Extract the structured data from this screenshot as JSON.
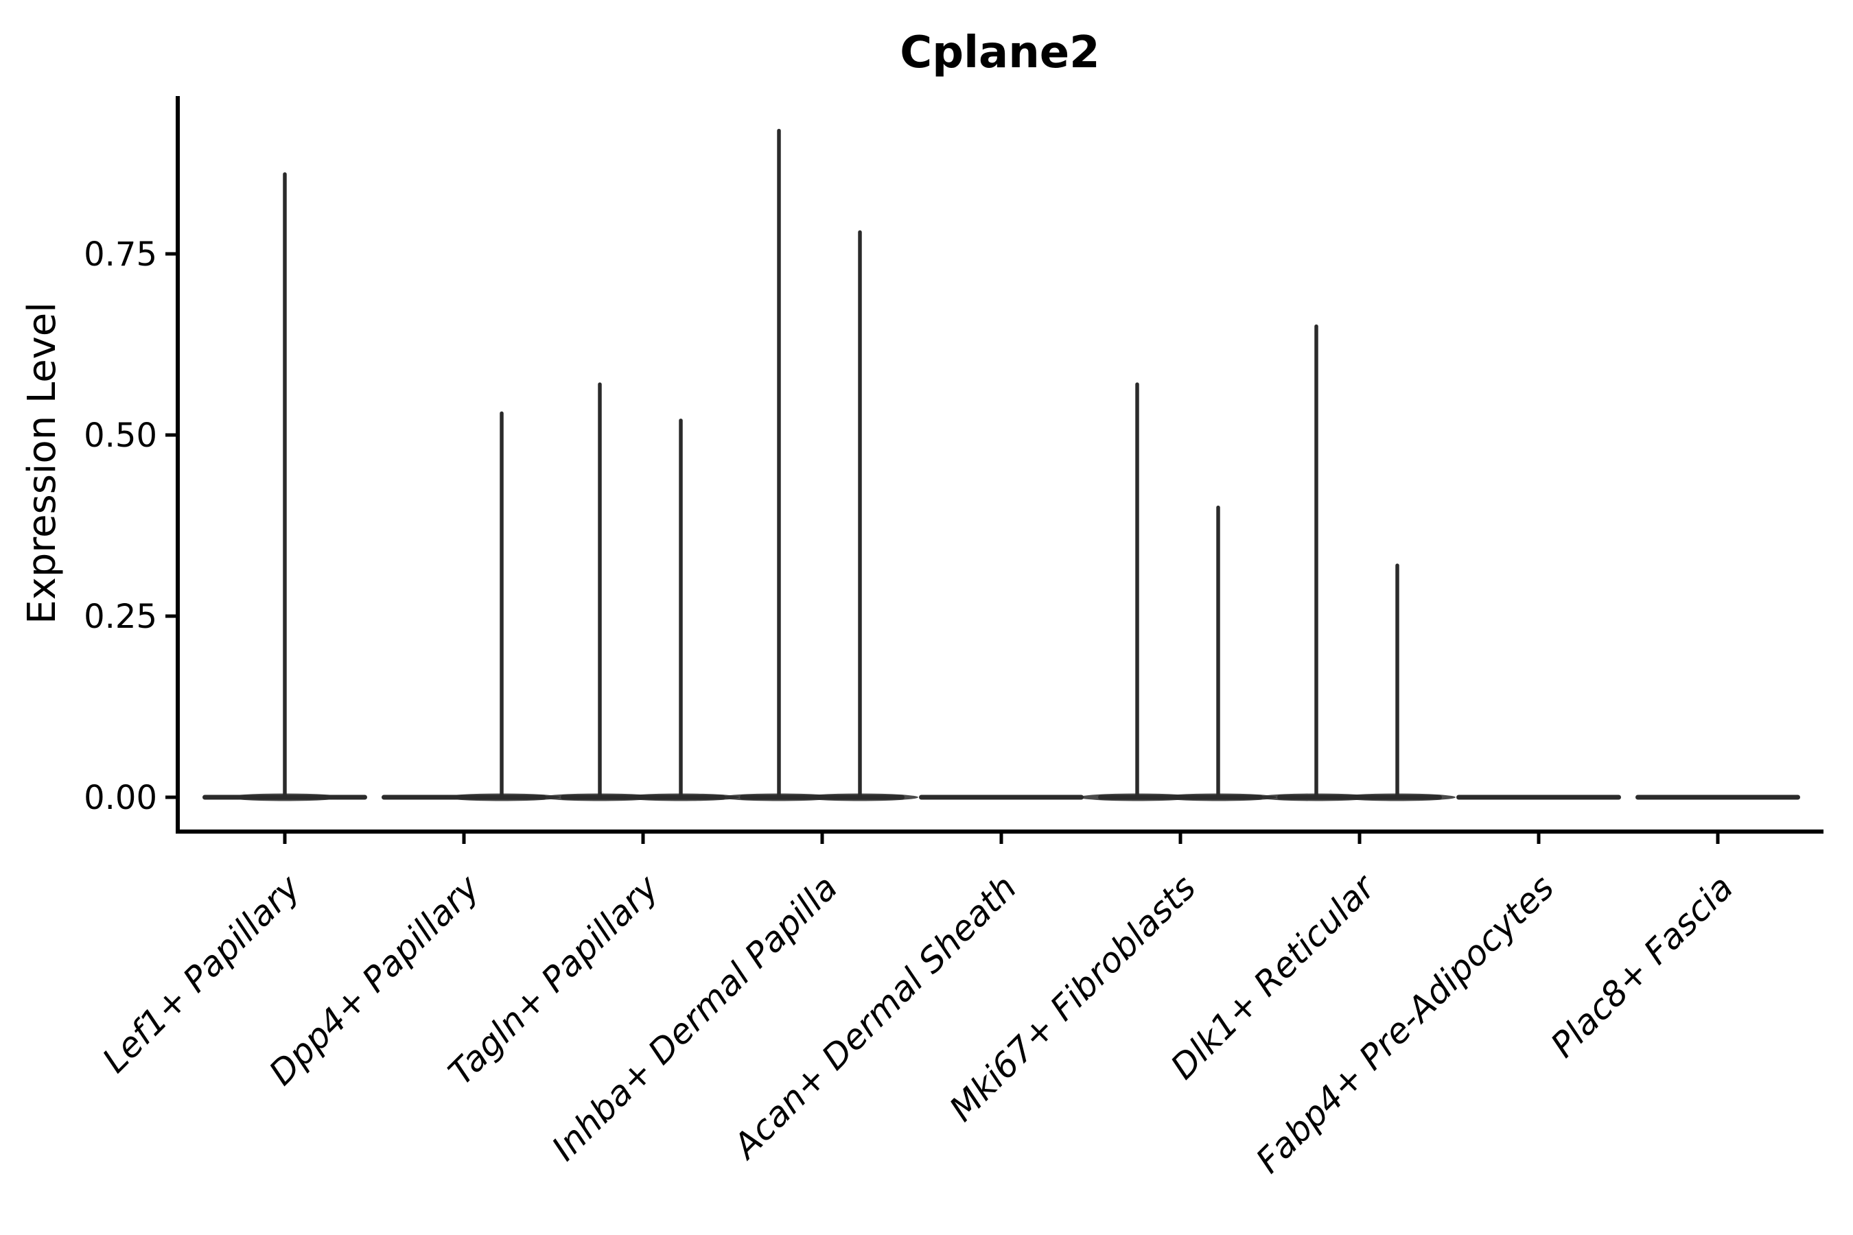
{
  "chart_data": {
    "type": "violin",
    "title": "Cplane2",
    "ylabel": "Expression Level",
    "xlabel": "",
    "ylim": [
      0,
      0.97
    ],
    "ytick_labels": [
      "0.00",
      "0.25",
      "0.50",
      "0.75"
    ],
    "ytick_values": [
      0.0,
      0.25,
      0.5,
      0.75
    ],
    "grid": false,
    "legend": "none",
    "baseline_value": 0.0,
    "categories": [
      "Lef1+ Papillary",
      "Dpp4+ Papillary",
      "Tagln+ Papillary",
      "Inhba+ Dermal Papilla",
      "Acan+ Dermal Sheath",
      "Mki67+ Fibroblasts",
      "Dlk1+ Reticular",
      "Fabp4+ Pre-Adipocytes",
      "Plac8+ Fascia"
    ],
    "violins": [
      {
        "category": "Lef1+ Papillary",
        "body_at_zero": true,
        "peaks": [
          {
            "side": "center",
            "value": 0.86
          }
        ]
      },
      {
        "category": "Dpp4+ Papillary",
        "body_at_zero": true,
        "peaks": [
          {
            "side": "right",
            "value": 0.53
          }
        ]
      },
      {
        "category": "Tagln+ Papillary",
        "body_at_zero": true,
        "peaks": [
          {
            "side": "left",
            "value": 0.57
          },
          {
            "side": "right",
            "value": 0.52
          }
        ]
      },
      {
        "category": "Inhba+ Dermal Papilla",
        "body_at_zero": true,
        "peaks": [
          {
            "side": "left",
            "value": 0.92
          },
          {
            "side": "right",
            "value": 0.78
          }
        ]
      },
      {
        "category": "Acan+ Dermal Sheath",
        "body_at_zero": true,
        "peaks": []
      },
      {
        "category": "Mki67+ Fibroblasts",
        "body_at_zero": true,
        "peaks": [
          {
            "side": "left",
            "value": 0.57
          },
          {
            "side": "right",
            "value": 0.4
          }
        ]
      },
      {
        "category": "Dlk1+ Reticular",
        "body_at_zero": true,
        "peaks": [
          {
            "side": "left",
            "value": 0.65
          },
          {
            "side": "right",
            "value": 0.32
          }
        ]
      },
      {
        "category": "Fabp4+ Pre-Adipocytes",
        "body_at_zero": true,
        "peaks": []
      },
      {
        "category": "Plac8+ Fascia",
        "body_at_zero": true,
        "peaks": []
      }
    ],
    "colors": {
      "violin": "#2b2b2b",
      "axis": "#000000",
      "text": "#000000",
      "background": "#ffffff"
    }
  }
}
